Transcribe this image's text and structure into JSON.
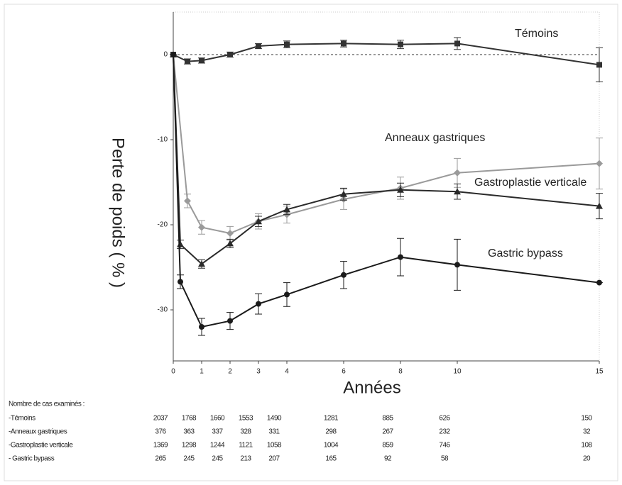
{
  "chart_data": {
    "type": "line",
    "ylabel": "Perte de poids ( % )",
    "xlabel": "Années",
    "xlim": [
      0,
      15
    ],
    "xticks": [
      0,
      1,
      2,
      3,
      4,
      6,
      8,
      10,
      15
    ],
    "ylim": [
      -36,
      5
    ],
    "yticks": [
      0,
      -10,
      -20,
      -30
    ],
    "reference_line": 0,
    "series": [
      {
        "name": "Témoins",
        "color": "#333333",
        "marker": "square",
        "x": [
          0,
          0.5,
          1,
          2,
          3,
          4,
          6,
          8,
          10,
          15
        ],
        "values": [
          0,
          -0.8,
          -0.7,
          0,
          1,
          1.2,
          1.3,
          1.2,
          1.3,
          -1.2
        ],
        "errors": [
          0,
          0.3,
          0.3,
          0.3,
          0.3,
          0.4,
          0.4,
          0.5,
          0.7,
          2
        ]
      },
      {
        "name": "Anneaux gastriques",
        "color": "#9a9a9a",
        "marker": "diamond",
        "x": [
          0,
          0.5,
          1,
          2,
          3,
          4,
          6,
          8,
          10,
          15
        ],
        "values": [
          0,
          -17.2,
          -20.3,
          -21,
          -19.6,
          -18.8,
          -17,
          -15.7,
          -13.9,
          -12.8
        ],
        "errors": [
          0,
          0.8,
          0.8,
          0.8,
          0.9,
          1,
          1.2,
          1.3,
          1.7,
          3
        ]
      },
      {
        "name": "Gastroplastie verticale",
        "color": "#2a2a2a",
        "marker": "triangle",
        "x": [
          0,
          0.25,
          1,
          2,
          3,
          4,
          6,
          8,
          10,
          15
        ],
        "values": [
          0,
          -22.3,
          -24.6,
          -22.2,
          -19.6,
          -18.2,
          -16.4,
          -15.9,
          -16.1,
          -17.8
        ],
        "errors": [
          0,
          0.5,
          0.5,
          0.5,
          0.6,
          0.6,
          0.7,
          0.8,
          0.9,
          1.5
        ]
      },
      {
        "name": "Gastric bypass",
        "color": "#1a1a1a",
        "marker": "circle",
        "x": [
          0,
          0.25,
          1,
          2,
          3,
          4,
          6,
          8,
          10,
          15
        ],
        "values": [
          0,
          -26.7,
          -32,
          -31.3,
          -29.3,
          -28.2,
          -25.9,
          -23.8,
          -24.7,
          -26.8
        ],
        "errors": [
          0,
          0.8,
          1,
          1,
          1.2,
          1.4,
          1.6,
          2.2,
          3,
          0
        ]
      }
    ]
  },
  "table": {
    "title": "Nombre de cas examinés :",
    "rows": [
      {
        "label": "-Témoins",
        "counts": [
          "2037",
          "1768",
          "1660",
          "1553",
          "1490",
          "1281",
          "885",
          "626",
          "150"
        ]
      },
      {
        "label": "-Anneaux gastriques",
        "counts": [
          "376",
          "363",
          "337",
          "328",
          "331",
          "298",
          "267",
          "232",
          "32"
        ]
      },
      {
        "label": "-Gastroplastie verticale",
        "counts": [
          "1369",
          "1298",
          "1244",
          "1121",
          "1058",
          "1004",
          "859",
          "746",
          "108"
        ]
      },
      {
        "label": "- Gastric bypass",
        "counts": [
          "265",
          "245",
          "245",
          "213",
          "207",
          "165",
          "92",
          "58",
          "20"
        ]
      }
    ]
  }
}
